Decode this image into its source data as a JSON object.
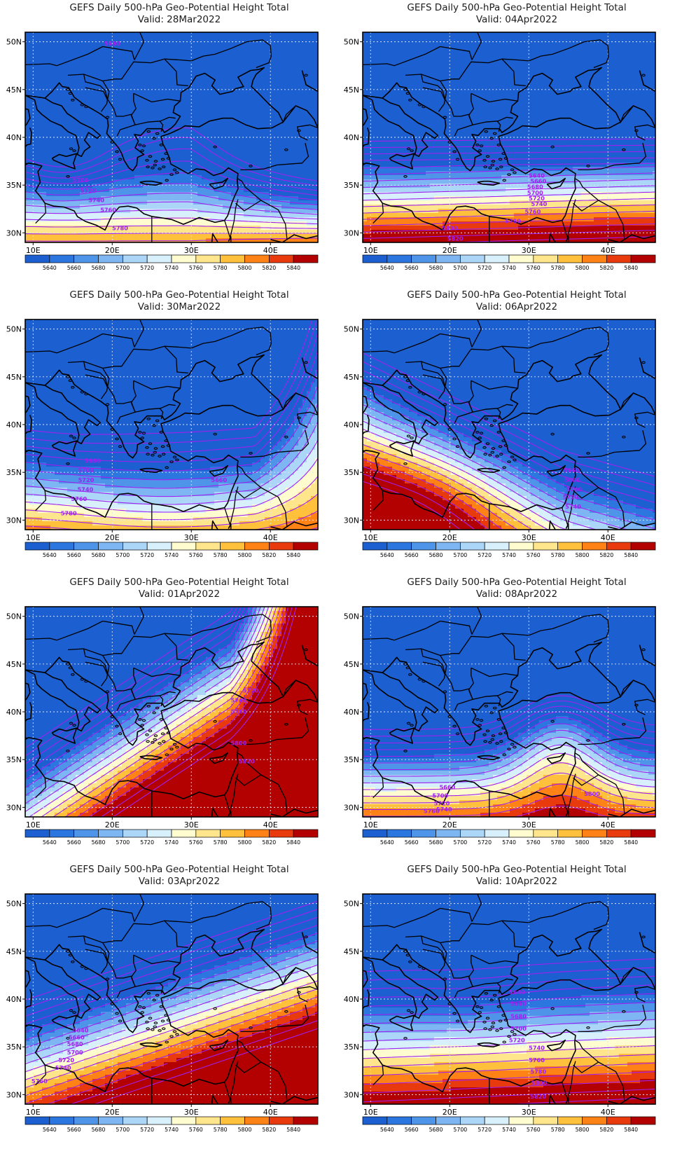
{
  "panels": [
    {
      "title": "GEFS Daily 500-hPa Geo-Potential Height Total",
      "valid": "Valid: 28Mar2022",
      "contour_labels": [
        "5680",
        "5700",
        "5720",
        "5740",
        "5760",
        "5780"
      ]
    },
    {
      "title": "GEFS Daily 500-hPa Geo-Potential Height Total",
      "valid": "Valid: 04Apr2022",
      "contour_labels": [
        "5640",
        "5660",
        "5680",
        "5700",
        "5720",
        "5740",
        "5760",
        "5780",
        "5800",
        "5820"
      ]
    },
    {
      "title": "GEFS Daily 500-hPa Geo-Potential Height Total",
      "valid": "Valid: 30Mar2022",
      "contour_labels": [
        "5680",
        "5700",
        "5720",
        "5740",
        "5760",
        "5780",
        "5660"
      ]
    },
    {
      "title": "GEFS Daily 500-hPa Geo-Potential Height Total",
      "valid": "Valid: 06Apr2022",
      "contour_labels": [
        "5660",
        "5680",
        "5700",
        "5720",
        "5740"
      ]
    },
    {
      "title": "GEFS Daily 500-hPa Geo-Potential Height Total",
      "valid": "Valid: 01Apr2022",
      "contour_labels": [
        "5720",
        "5740",
        "5760",
        "5800",
        "5820"
      ]
    },
    {
      "title": "GEFS Daily 500-hPa Geo-Potential Height Total",
      "valid": "Valid: 08Apr2022",
      "contour_labels": [
        "5660",
        "5700",
        "5720",
        "5740",
        "5760",
        "5800"
      ]
    },
    {
      "title": "GEFS Daily 500-hPa Geo-Potential Height Total",
      "valid": "Valid: 03Apr2022",
      "contour_labels": [
        "5640",
        "5660",
        "5680",
        "5700",
        "5720",
        "5740",
        "5760"
      ]
    },
    {
      "title": "GEFS Daily 500-hPa Geo-Potential Height Total",
      "valid": "Valid: 10Apr2022",
      "contour_labels": [
        "5640",
        "5660",
        "5680",
        "5700",
        "5720",
        "5740",
        "5760",
        "5780",
        "5800",
        "5820"
      ]
    }
  ],
  "axes": {
    "lat_labels": [
      "50N",
      "45N",
      "40N",
      "35N",
      "30N"
    ],
    "lon_labels": [
      "10E",
      "20E",
      "30E",
      "40E"
    ]
  },
  "colorbar": {
    "levels": [
      "5640",
      "5660",
      "5680",
      "5700",
      "5720",
      "5740",
      "5760",
      "5780",
      "5800",
      "5820",
      "5840"
    ],
    "colors": [
      "#1c5fd1",
      "#2c76e0",
      "#4e95ea",
      "#7db6f2",
      "#acd6f8",
      "#d7f0fb",
      "#fffdd0",
      "#ffe58c",
      "#ffc03c",
      "#ff8216",
      "#e83a0c",
      "#b30000"
    ]
  },
  "contour_color": "#a020f0",
  "coast_color": "#000000",
  "layout_hint": "4 rows x 2 columns; left column 28Mar-03Apr, right column 04Apr-10Apr"
}
